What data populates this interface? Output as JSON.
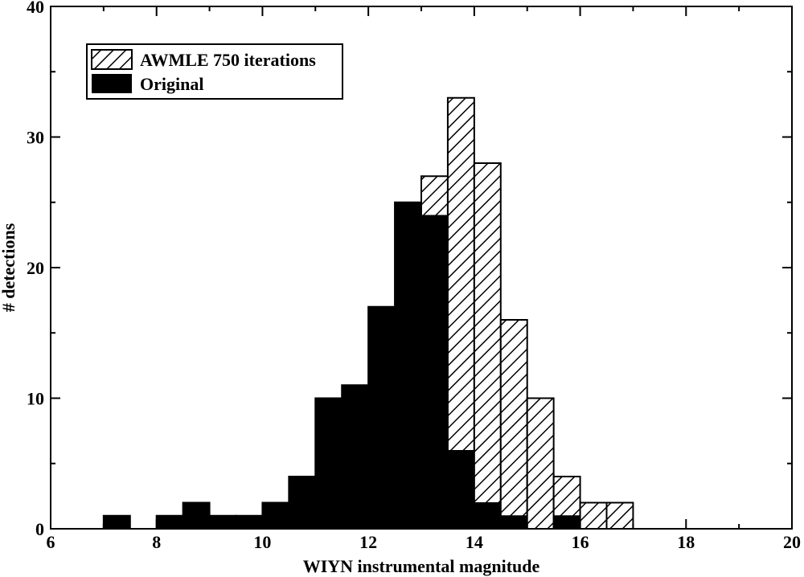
{
  "chart_data": {
    "type": "bar",
    "title": "",
    "xlabel": "WIYN instrumental magnitude",
    "ylabel": "# detections",
    "xlim": [
      6,
      20
    ],
    "ylim": [
      0,
      40
    ],
    "x_ticks": [
      "6",
      "8",
      "10",
      "12",
      "14",
      "16",
      "18",
      "20"
    ],
    "y_ticks": [
      "0",
      "10",
      "20",
      "30",
      "40"
    ],
    "legend_position": "top-left",
    "bin_width": 0.5,
    "series": [
      {
        "name": "AWMLE 750 iterations",
        "style": "hatched",
        "color": "#ffffff",
        "bins": [
          {
            "x0": 7.0,
            "value": 1
          },
          {
            "x0": 8.0,
            "value": 1
          },
          {
            "x0": 8.5,
            "value": 2
          },
          {
            "x0": 9.0,
            "value": 1
          },
          {
            "x0": 9.5,
            "value": 1
          },
          {
            "x0": 10.0,
            "value": 2
          },
          {
            "x0": 10.5,
            "value": 4
          },
          {
            "x0": 11.0,
            "value": 10
          },
          {
            "x0": 11.5,
            "value": 11
          },
          {
            "x0": 12.0,
            "value": 17
          },
          {
            "x0": 12.5,
            "value": 25
          },
          {
            "x0": 13.0,
            "value": 27
          },
          {
            "x0": 13.5,
            "value": 33
          },
          {
            "x0": 14.0,
            "value": 28
          },
          {
            "x0": 14.5,
            "value": 16
          },
          {
            "x0": 15.0,
            "value": 10
          },
          {
            "x0": 15.5,
            "value": 4
          },
          {
            "x0": 16.0,
            "value": 2
          },
          {
            "x0": 16.5,
            "value": 2
          }
        ]
      },
      {
        "name": "Original",
        "style": "solid",
        "color": "#000000",
        "bins": [
          {
            "x0": 7.0,
            "value": 1
          },
          {
            "x0": 8.0,
            "value": 1
          },
          {
            "x0": 8.5,
            "value": 2
          },
          {
            "x0": 9.0,
            "value": 1
          },
          {
            "x0": 9.5,
            "value": 1
          },
          {
            "x0": 10.0,
            "value": 2
          },
          {
            "x0": 10.5,
            "value": 4
          },
          {
            "x0": 11.0,
            "value": 10
          },
          {
            "x0": 11.5,
            "value": 11
          },
          {
            "x0": 12.0,
            "value": 17
          },
          {
            "x0": 12.5,
            "value": 25
          },
          {
            "x0": 13.0,
            "value": 24
          },
          {
            "x0": 13.5,
            "value": 6
          },
          {
            "x0": 14.0,
            "value": 2
          },
          {
            "x0": 14.5,
            "value": 1
          },
          {
            "x0": 15.0,
            "value": 0
          },
          {
            "x0": 15.5,
            "value": 1
          }
        ]
      }
    ]
  }
}
